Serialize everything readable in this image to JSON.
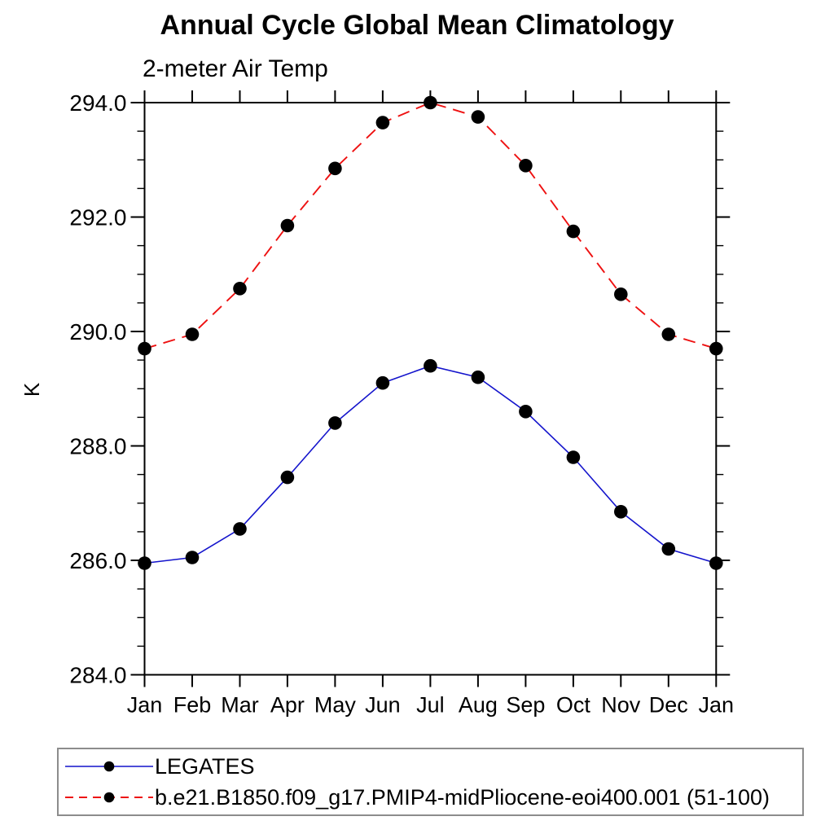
{
  "chart_data": {
    "type": "line",
    "title": "Annual Cycle Global Mean Climatology",
    "subtitle": "2-meter Air Temp",
    "ylabel": "K",
    "xlabel": "",
    "categories": [
      "Jan",
      "Feb",
      "Mar",
      "Apr",
      "May",
      "Jun",
      "Jul",
      "Aug",
      "Sep",
      "Oct",
      "Nov",
      "Dec",
      "Jan"
    ],
    "ylim": [
      284.0,
      294.0
    ],
    "ytick_labels": [
      "284.0",
      "286.0",
      "288.0",
      "290.0",
      "292.0",
      "294.0"
    ],
    "yticks_major": [
      284.0,
      286.0,
      288.0,
      290.0,
      292.0,
      294.0
    ],
    "minor_tick_step": 0.5,
    "grid": false,
    "legend_position": "bottom-left-box",
    "series": [
      {
        "name": "LEGATES",
        "color": "#1414cc",
        "style": "solid",
        "marker": "circle",
        "marker_color": "#000000",
        "values": [
          285.95,
          286.05,
          286.55,
          287.45,
          288.4,
          289.1,
          289.4,
          289.2,
          288.6,
          287.8,
          286.85,
          286.2,
          285.95
        ]
      },
      {
        "name": "b.e21.B1850.f09_g17.PMIP4-midPliocene-eoi400.001 (51-100)",
        "color": "#ee1111",
        "style": "dashed",
        "marker": "circle",
        "marker_color": "#000000",
        "values": [
          289.7,
          289.95,
          290.75,
          291.85,
          292.85,
          293.65,
          294.0,
          293.75,
          292.9,
          291.75,
          290.65,
          289.95,
          289.7
        ]
      }
    ],
    "colors": {
      "axis": "#000000",
      "tick_label": "#000000",
      "legend_border": "#8c8c8c"
    }
  }
}
